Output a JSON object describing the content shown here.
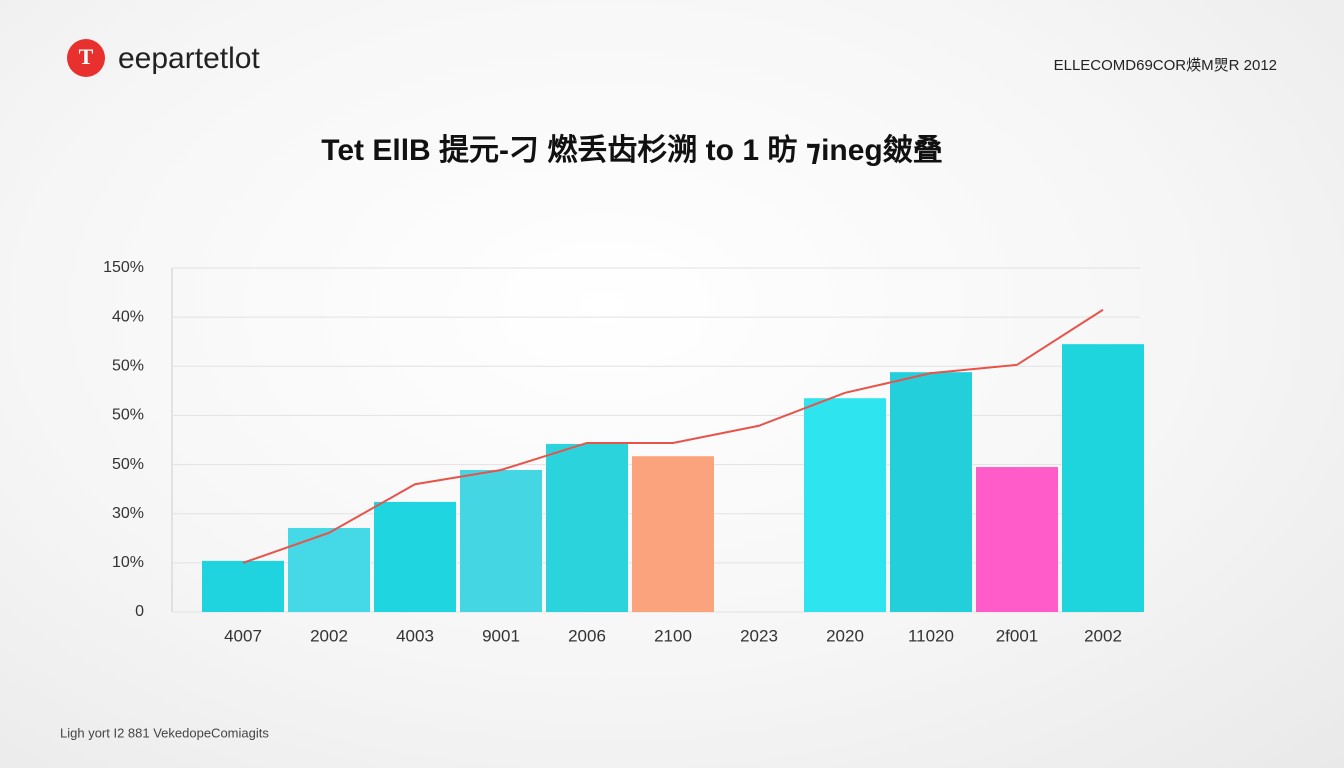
{
  "header": {
    "brand": "eepartetlot",
    "logo_letter": "T",
    "meta": "ELLECOMD69COR煐M煛R 2012"
  },
  "chart_data": {
    "type": "bar",
    "title": "Tet EllB 提元-刁 燃丢齿杉溯 to 1 昉 ⁊ineg皴叠",
    "categories": [
      "4007",
      "2002",
      "4003",
      "9001",
      "2006",
      "2100",
      "2023",
      "2020",
      "11020",
      "2f001",
      "2002"
    ],
    "values": [
      1.04,
      1.71,
      2.24,
      2.89,
      3.42,
      3.17,
      null,
      4.35,
      4.88,
      2.95,
      5.45
    ],
    "colors": [
      "#1fd3df",
      "#45d8e6",
      "#1fd6e0",
      "#45d6e4",
      "#2bd3dd",
      "#fba37c",
      "#1fd6e0",
      "#2ee4ee",
      "#24cfdc",
      "#ff5cc9",
      "#1fd5dd"
    ],
    "line": {
      "color": "#e8534a",
      "values": [
        1.0,
        1.61,
        2.6,
        2.89,
        3.44,
        3.44,
        3.79,
        4.46,
        4.86,
        5.03,
        6.15
      ]
    },
    "ylim": [
      0,
      7
    ],
    "yticks": [
      {
        "value": 0,
        "label": "0"
      },
      {
        "value": 1,
        "label": "10%"
      },
      {
        "value": 2,
        "label": "30%"
      },
      {
        "value": 3,
        "label": "50%"
      },
      {
        "value": 4,
        "label": "50%"
      },
      {
        "value": 5,
        "label": "50%"
      },
      {
        "value": 6,
        "label": "40%"
      },
      {
        "value": 7,
        "label": "150%"
      }
    ],
    "grid": true
  },
  "footer": {
    "note": "Ligh yort I2 881 VekedopeComiagits"
  }
}
